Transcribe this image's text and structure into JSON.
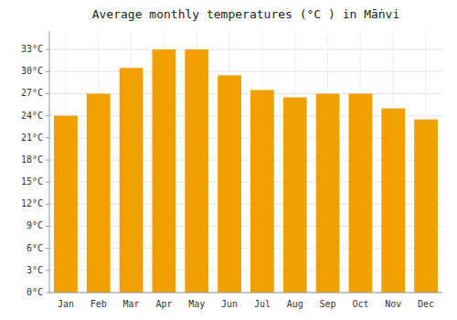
{
  "chart_data": {
    "type": "bar",
    "title": "Average monthly temperatures (°C ) in Māṅvi",
    "categories": [
      "Jan",
      "Feb",
      "Mar",
      "Apr",
      "May",
      "Jun",
      "Jul",
      "Aug",
      "Sep",
      "Oct",
      "Nov",
      "Dec"
    ],
    "values": [
      24.0,
      27.0,
      30.5,
      33.0,
      33.0,
      29.5,
      27.5,
      26.5,
      27.0,
      27.0,
      25.0,
      23.5
    ],
    "color": "#F0A000",
    "ylim": [
      0,
      35.5
    ],
    "yticks": [
      {
        "value": 0,
        "label": "0°C"
      },
      {
        "value": 3,
        "label": "3°C"
      },
      {
        "value": 6,
        "label": "6°C"
      },
      {
        "value": 9,
        "label": "9°C"
      },
      {
        "value": 12,
        "label": "12°C"
      },
      {
        "value": 15,
        "label": "15°C"
      },
      {
        "value": 18,
        "label": "18°C"
      },
      {
        "value": 21,
        "label": "21°C"
      },
      {
        "value": 24,
        "label": "24°C"
      },
      {
        "value": 27,
        "label": "27°C"
      },
      {
        "value": 30,
        "label": "30°C"
      },
      {
        "value": 33,
        "label": "33°C"
      }
    ],
    "grid": true
  }
}
